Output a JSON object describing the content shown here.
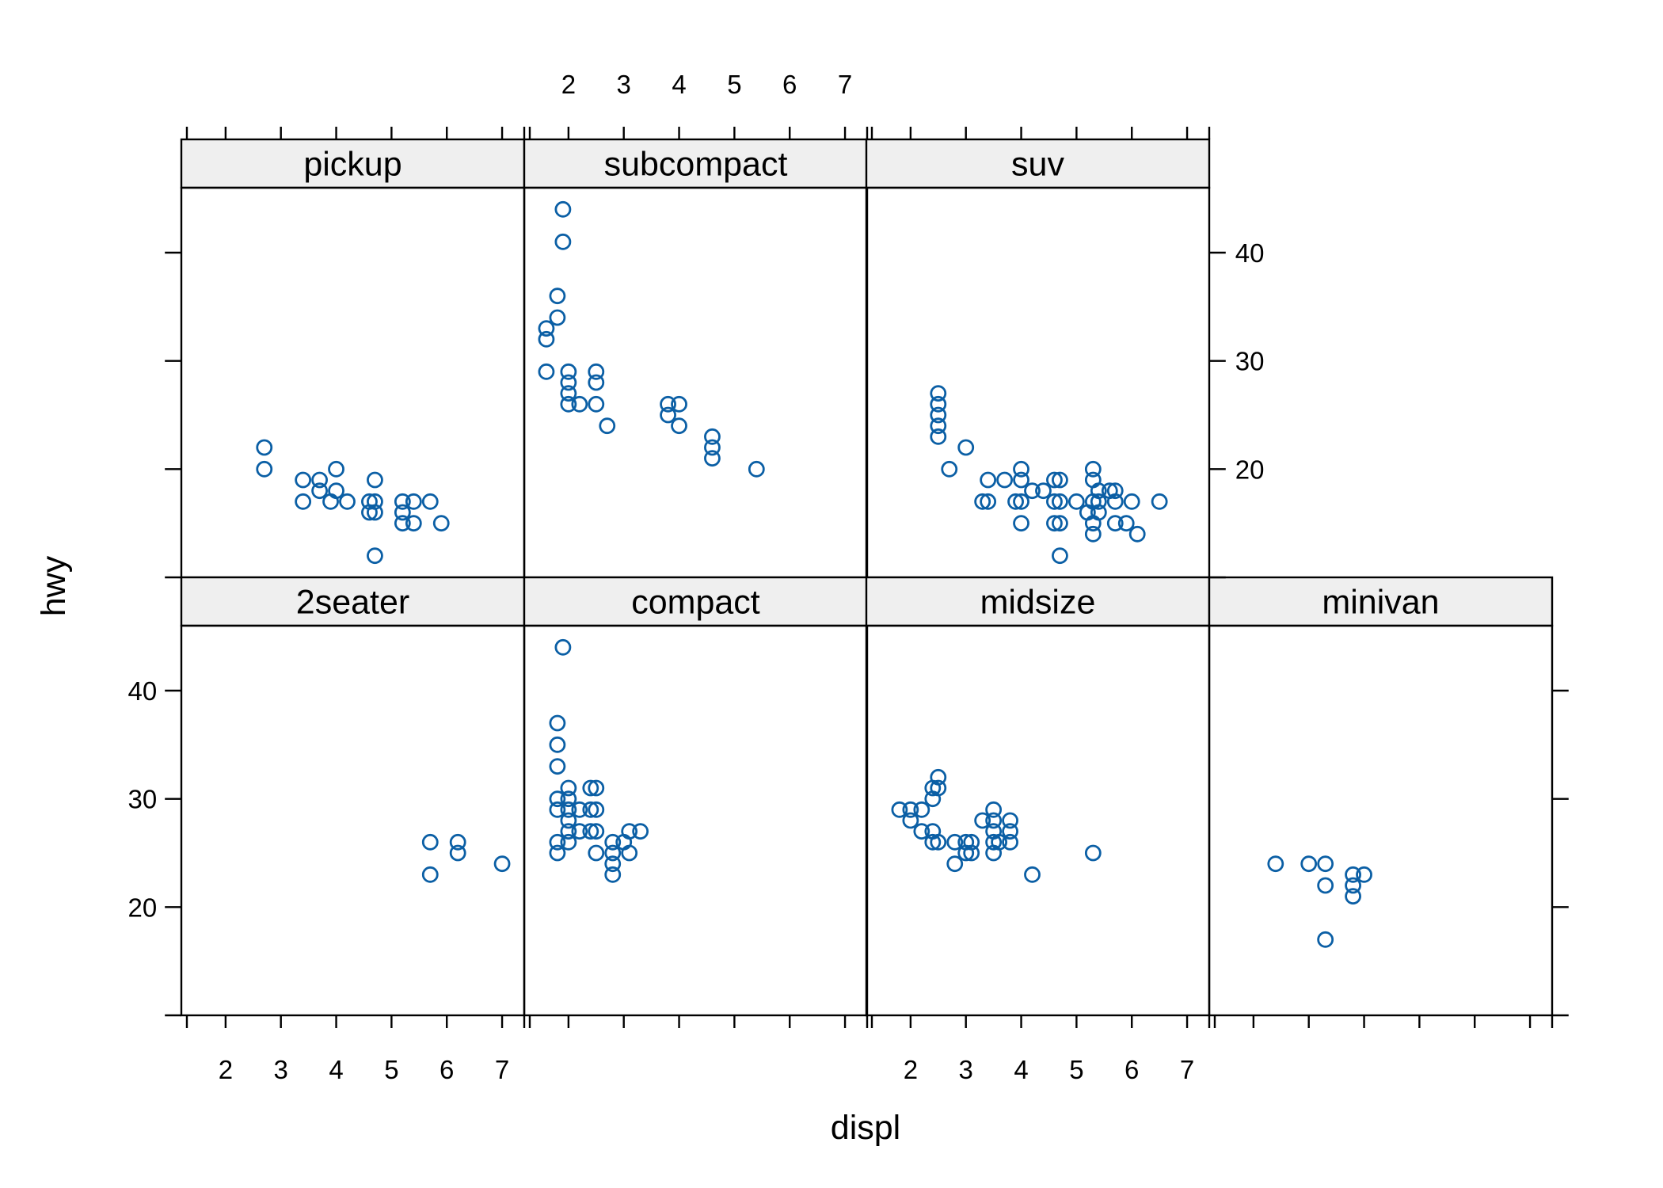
{
  "chart_data": {
    "type": "scatter",
    "xlabel": "displ",
    "ylabel": "hwy",
    "xlim": [
      1.2,
      7.4
    ],
    "ylim": [
      10,
      46
    ],
    "x_ticks": [
      2,
      3,
      4,
      5,
      6,
      7
    ],
    "y_ticks": [
      20,
      30,
      40
    ],
    "marker": "open-circle",
    "marker_color": "#0b5fa5",
    "strip_color": "#efefef",
    "panels": [
      {
        "name": "pickup",
        "row": 0,
        "col": 0,
        "points": [
          [
            2.7,
            20
          ],
          [
            2.7,
            22
          ],
          [
            3.4,
            19
          ],
          [
            3.4,
            17
          ],
          [
            3.7,
            18
          ],
          [
            3.7,
            19
          ],
          [
            3.9,
            17
          ],
          [
            4.0,
            20
          ],
          [
            4.0,
            18
          ],
          [
            4.2,
            17
          ],
          [
            4.6,
            17
          ],
          [
            4.6,
            16
          ],
          [
            4.7,
            19
          ],
          [
            4.7,
            16
          ],
          [
            4.7,
            17
          ],
          [
            4.7,
            12
          ],
          [
            5.2,
            17
          ],
          [
            5.2,
            16
          ],
          [
            5.2,
            15
          ],
          [
            5.4,
            15
          ],
          [
            5.4,
            17
          ],
          [
            5.7,
            17
          ],
          [
            5.9,
            15
          ]
        ]
      },
      {
        "name": "subcompact",
        "row": 0,
        "col": 1,
        "points": [
          [
            1.6,
            29
          ],
          [
            1.6,
            32
          ],
          [
            1.6,
            33
          ],
          [
            1.8,
            34
          ],
          [
            1.8,
            36
          ],
          [
            1.9,
            41
          ],
          [
            1.9,
            44
          ],
          [
            2.0,
            29
          ],
          [
            2.0,
            28
          ],
          [
            2.0,
            27
          ],
          [
            2.0,
            26
          ],
          [
            2.2,
            26
          ],
          [
            2.5,
            29
          ],
          [
            2.5,
            28
          ],
          [
            2.5,
            26
          ],
          [
            2.7,
            24
          ],
          [
            3.8,
            26
          ],
          [
            3.8,
            25
          ],
          [
            4.0,
            26
          ],
          [
            4.0,
            24
          ],
          [
            4.6,
            23
          ],
          [
            4.6,
            22
          ],
          [
            4.6,
            21
          ],
          [
            5.4,
            20
          ]
        ]
      },
      {
        "name": "suv",
        "row": 0,
        "col": 2,
        "points": [
          [
            2.5,
            27
          ],
          [
            2.5,
            26
          ],
          [
            2.5,
            25
          ],
          [
            2.5,
            24
          ],
          [
            2.5,
            23
          ],
          [
            2.7,
            20
          ],
          [
            3.0,
            22
          ],
          [
            3.3,
            17
          ],
          [
            3.4,
            19
          ],
          [
            3.4,
            17
          ],
          [
            3.7,
            19
          ],
          [
            3.9,
            17
          ],
          [
            4.0,
            20
          ],
          [
            4.0,
            19
          ],
          [
            4.0,
            17
          ],
          [
            4.0,
            15
          ],
          [
            4.2,
            18
          ],
          [
            4.4,
            18
          ],
          [
            4.6,
            19
          ],
          [
            4.6,
            17
          ],
          [
            4.6,
            15
          ],
          [
            4.7,
            19
          ],
          [
            4.7,
            17
          ],
          [
            4.7,
            15
          ],
          [
            4.7,
            12
          ],
          [
            5.0,
            17
          ],
          [
            5.2,
            16
          ],
          [
            5.3,
            20
          ],
          [
            5.3,
            19
          ],
          [
            5.3,
            17
          ],
          [
            5.3,
            15
          ],
          [
            5.3,
            14
          ],
          [
            5.4,
            18
          ],
          [
            5.4,
            17
          ],
          [
            5.4,
            16
          ],
          [
            5.6,
            18
          ],
          [
            5.7,
            18
          ],
          [
            5.7,
            17
          ],
          [
            5.7,
            15
          ],
          [
            5.9,
            15
          ],
          [
            6.0,
            17
          ],
          [
            6.1,
            14
          ],
          [
            6.5,
            17
          ]
        ]
      },
      {
        "name": "2seater",
        "row": 1,
        "col": 0,
        "points": [
          [
            5.7,
            26
          ],
          [
            5.7,
            23
          ],
          [
            6.2,
            26
          ],
          [
            6.2,
            25
          ],
          [
            7.0,
            24
          ]
        ]
      },
      {
        "name": "compact",
        "row": 1,
        "col": 1,
        "points": [
          [
            1.8,
            37
          ],
          [
            1.8,
            35
          ],
          [
            1.8,
            33
          ],
          [
            1.8,
            30
          ],
          [
            1.8,
            29
          ],
          [
            1.8,
            26
          ],
          [
            1.8,
            25
          ],
          [
            1.9,
            44
          ],
          [
            2.0,
            31
          ],
          [
            2.0,
            30
          ],
          [
            2.0,
            29
          ],
          [
            2.0,
            28
          ],
          [
            2.0,
            27
          ],
          [
            2.0,
            26
          ],
          [
            2.2,
            29
          ],
          [
            2.2,
            27
          ],
          [
            2.4,
            31
          ],
          [
            2.4,
            29
          ],
          [
            2.4,
            27
          ],
          [
            2.5,
            31
          ],
          [
            2.5,
            29
          ],
          [
            2.5,
            27
          ],
          [
            2.5,
            25
          ],
          [
            2.8,
            26
          ],
          [
            2.8,
            25
          ],
          [
            2.8,
            24
          ],
          [
            2.8,
            23
          ],
          [
            3.0,
            26
          ],
          [
            3.1,
            27
          ],
          [
            3.1,
            25
          ],
          [
            3.3,
            27
          ]
        ]
      },
      {
        "name": "midsize",
        "row": 1,
        "col": 2,
        "points": [
          [
            1.8,
            29
          ],
          [
            2.0,
            29
          ],
          [
            2.0,
            28
          ],
          [
            2.2,
            29
          ],
          [
            2.2,
            27
          ],
          [
            2.4,
            31
          ],
          [
            2.4,
            30
          ],
          [
            2.4,
            27
          ],
          [
            2.4,
            26
          ],
          [
            2.5,
            32
          ],
          [
            2.5,
            31
          ],
          [
            2.5,
            26
          ],
          [
            2.8,
            26
          ],
          [
            2.8,
            24
          ],
          [
            3.0,
            26
          ],
          [
            3.0,
            25
          ],
          [
            3.1,
            26
          ],
          [
            3.1,
            25
          ],
          [
            3.3,
            28
          ],
          [
            3.5,
            29
          ],
          [
            3.5,
            28
          ],
          [
            3.5,
            27
          ],
          [
            3.5,
            26
          ],
          [
            3.5,
            25
          ],
          [
            3.6,
            26
          ],
          [
            3.8,
            28
          ],
          [
            3.8,
            27
          ],
          [
            3.8,
            26
          ],
          [
            4.2,
            23
          ],
          [
            5.3,
            25
          ]
        ]
      },
      {
        "name": "minivan",
        "row": 1,
        "col": 3,
        "points": [
          [
            2.4,
            24
          ],
          [
            3.0,
            24
          ],
          [
            3.3,
            24
          ],
          [
            3.3,
            22
          ],
          [
            3.3,
            17
          ],
          [
            3.8,
            23
          ],
          [
            3.8,
            22
          ],
          [
            3.8,
            21
          ],
          [
            4.0,
            23
          ]
        ]
      }
    ]
  }
}
